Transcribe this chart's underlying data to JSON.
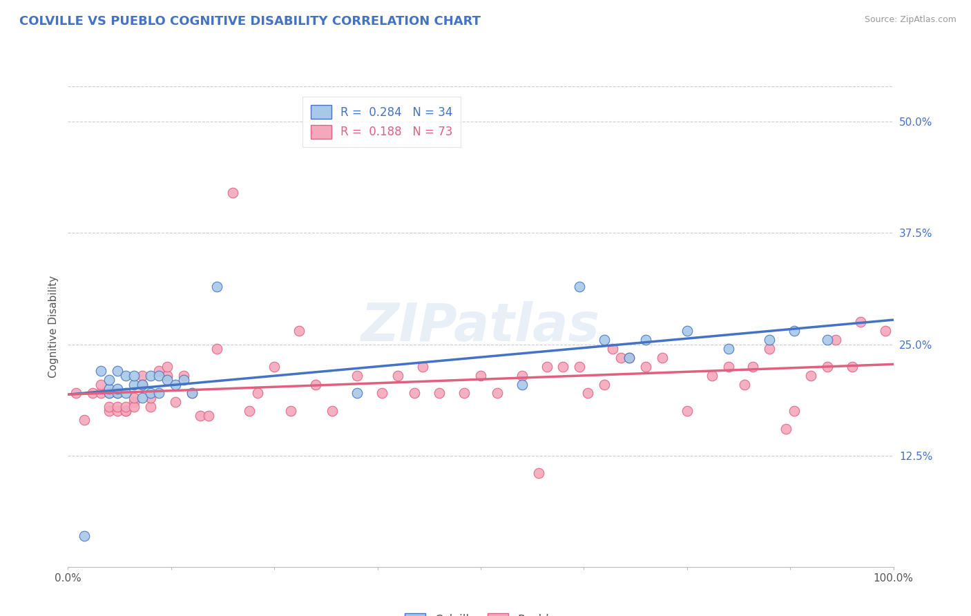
{
  "title": "COLVILLE VS PUEBLO COGNITIVE DISABILITY CORRELATION CHART",
  "source": "Source: ZipAtlas.com",
  "ylabel": "Cognitive Disability",
  "colville_R": 0.284,
  "colville_N": 34,
  "pueblo_R": 0.188,
  "pueblo_N": 73,
  "colville_color": "#A8C8E8",
  "pueblo_color": "#F4A8BC",
  "colville_line_color": "#4472C4",
  "pueblo_line_color": "#E06080",
  "yticks": [
    0.0,
    0.125,
    0.25,
    0.375,
    0.5
  ],
  "ytick_labels": [
    "",
    "12.5%",
    "25.0%",
    "37.5%",
    "50.0%"
  ],
  "xlim": [
    0.0,
    1.0
  ],
  "ylim": [
    0.0,
    0.54
  ],
  "background_color": "#ffffff",
  "watermark": "ZIPatlas",
  "title_color": "#4472C4",
  "source_color": "#999999",
  "colville_x": [
    0.02,
    0.04,
    0.05,
    0.05,
    0.05,
    0.06,
    0.06,
    0.06,
    0.07,
    0.07,
    0.08,
    0.08,
    0.09,
    0.09,
    0.1,
    0.1,
    0.11,
    0.11,
    0.12,
    0.13,
    0.14,
    0.15,
    0.18,
    0.35,
    0.55,
    0.62,
    0.65,
    0.68,
    0.7,
    0.75,
    0.8,
    0.85,
    0.88,
    0.92
  ],
  "colville_y": [
    0.035,
    0.22,
    0.195,
    0.2,
    0.21,
    0.195,
    0.2,
    0.22,
    0.195,
    0.215,
    0.205,
    0.215,
    0.19,
    0.205,
    0.195,
    0.215,
    0.195,
    0.215,
    0.21,
    0.205,
    0.21,
    0.195,
    0.315,
    0.195,
    0.205,
    0.315,
    0.255,
    0.235,
    0.255,
    0.265,
    0.245,
    0.255,
    0.265,
    0.255
  ],
  "pueblo_x": [
    0.01,
    0.02,
    0.03,
    0.04,
    0.04,
    0.05,
    0.05,
    0.05,
    0.06,
    0.06,
    0.06,
    0.07,
    0.07,
    0.07,
    0.08,
    0.08,
    0.08,
    0.09,
    0.09,
    0.1,
    0.1,
    0.11,
    0.12,
    0.12,
    0.13,
    0.14,
    0.15,
    0.16,
    0.17,
    0.18,
    0.2,
    0.22,
    0.23,
    0.25,
    0.27,
    0.28,
    0.3,
    0.32,
    0.35,
    0.38,
    0.4,
    0.42,
    0.43,
    0.45,
    0.48,
    0.5,
    0.52,
    0.55,
    0.57,
    0.58,
    0.6,
    0.62,
    0.63,
    0.65,
    0.66,
    0.67,
    0.68,
    0.7,
    0.72,
    0.75,
    0.78,
    0.8,
    0.82,
    0.83,
    0.85,
    0.87,
    0.88,
    0.9,
    0.92,
    0.93,
    0.95,
    0.96,
    0.99
  ],
  "pueblo_y": [
    0.195,
    0.165,
    0.195,
    0.195,
    0.205,
    0.175,
    0.18,
    0.195,
    0.175,
    0.18,
    0.195,
    0.175,
    0.175,
    0.18,
    0.185,
    0.18,
    0.19,
    0.205,
    0.215,
    0.18,
    0.19,
    0.22,
    0.215,
    0.225,
    0.185,
    0.215,
    0.195,
    0.17,
    0.17,
    0.245,
    0.42,
    0.175,
    0.195,
    0.225,
    0.175,
    0.265,
    0.205,
    0.175,
    0.215,
    0.195,
    0.215,
    0.195,
    0.225,
    0.195,
    0.195,
    0.215,
    0.195,
    0.215,
    0.105,
    0.225,
    0.225,
    0.225,
    0.195,
    0.205,
    0.245,
    0.235,
    0.235,
    0.225,
    0.235,
    0.175,
    0.215,
    0.225,
    0.205,
    0.225,
    0.245,
    0.155,
    0.175,
    0.215,
    0.225,
    0.255,
    0.225,
    0.275,
    0.265
  ]
}
